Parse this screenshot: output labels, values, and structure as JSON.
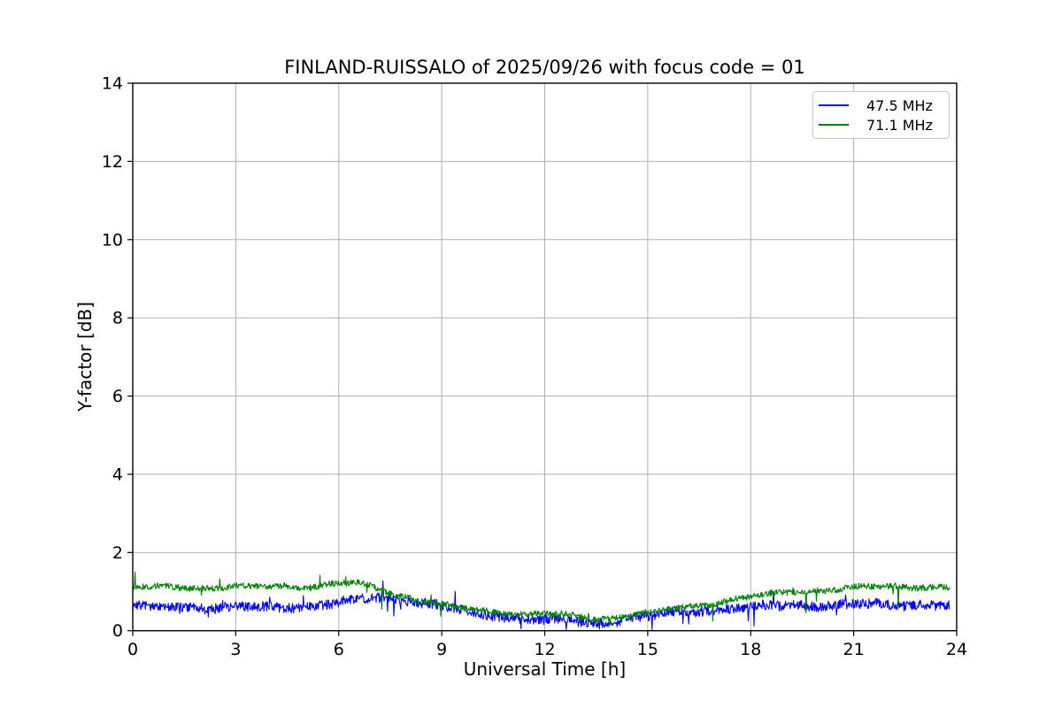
{
  "chart_data": {
    "type": "line",
    "title": "FINLAND-RUISSALO of 2025/09/26 with focus code = 01",
    "xlabel": "Universal Time [h]",
    "ylabel": "Y-factor [dB]",
    "xlim": [
      0,
      24
    ],
    "ylim": [
      0,
      14
    ],
    "xticks": [
      0,
      3,
      6,
      9,
      12,
      15,
      18,
      21,
      24
    ],
    "yticks": [
      0,
      2,
      4,
      6,
      8,
      10,
      12,
      14
    ],
    "grid": true,
    "grid_color": "#b0b0b0",
    "axis_color": "#000000",
    "background_color": "#ffffff",
    "legend_position": "upper right",
    "x_end_hour": 23.8,
    "samples_per_series": 1428,
    "x_anchor_hours": [
      0,
      0.5,
      1,
      1.5,
      2,
      2.5,
      3,
      3.5,
      4,
      4.5,
      5,
      5.5,
      6,
      6.5,
      7,
      7.5,
      8,
      8.5,
      9,
      9.5,
      10,
      10.5,
      11,
      11.5,
      12,
      12.5,
      13,
      13.5,
      14,
      14.5,
      15,
      15.5,
      16,
      16.5,
      17,
      17.5,
      18,
      18.5,
      19,
      19.5,
      20,
      20.5,
      21,
      21.5,
      22,
      22.5,
      23,
      23.5,
      23.8
    ],
    "series": [
      {
        "name": "47.5 MHz",
        "color": "#0000ff",
        "values": [
          0.62,
          0.6,
          0.6,
          0.61,
          0.6,
          0.59,
          0.6,
          0.59,
          0.6,
          0.61,
          0.62,
          0.65,
          0.72,
          0.79,
          0.85,
          0.83,
          0.79,
          0.71,
          0.62,
          0.53,
          0.45,
          0.4,
          0.35,
          0.31,
          0.28,
          0.26,
          0.24,
          0.21,
          0.26,
          0.32,
          0.36,
          0.42,
          0.48,
          0.52,
          0.55,
          0.58,
          0.61,
          0.63,
          0.64,
          0.65,
          0.66,
          0.66,
          0.67,
          0.67,
          0.66,
          0.66,
          0.67,
          0.66,
          0.65
        ],
        "noise_amplitude": 0.13,
        "seed": 7,
        "spikes": [
          [
            2.2,
            0.35
          ],
          [
            7.8,
            0.55
          ],
          [
            11.3,
            0.05
          ],
          [
            13.6,
            0.04
          ],
          [
            18.1,
            0.12
          ],
          [
            20.5,
            0.4
          ]
        ]
      },
      {
        "name": "71.1 MHz",
        "color": "#008000",
        "values": [
          1.12,
          1.1,
          1.11,
          1.12,
          1.1,
          1.11,
          1.13,
          1.11,
          1.12,
          1.14,
          1.12,
          1.16,
          1.21,
          1.22,
          1.1,
          0.97,
          0.86,
          0.76,
          0.67,
          0.58,
          0.52,
          0.48,
          0.45,
          0.43,
          0.43,
          0.4,
          0.35,
          0.3,
          0.33,
          0.4,
          0.46,
          0.52,
          0.58,
          0.65,
          0.72,
          0.8,
          0.87,
          0.92,
          0.97,
          1.01,
          1.04,
          1.07,
          1.1,
          1.12,
          1.12,
          1.13,
          1.13,
          1.12,
          1.12
        ],
        "noise_amplitude": 0.08,
        "seed": 13,
        "spikes": [
          [
            0.06,
            1.5
          ],
          [
            5.45,
            1.42
          ],
          [
            6.2,
            1.38
          ],
          [
            7.25,
            0.55
          ],
          [
            13.9,
            0.12
          ],
          [
            16.9,
            0.25
          ],
          [
            19.62,
            0.45
          ],
          [
            22.3,
            0.55
          ]
        ]
      }
    ]
  },
  "layout_text": {
    "note": ""
  }
}
